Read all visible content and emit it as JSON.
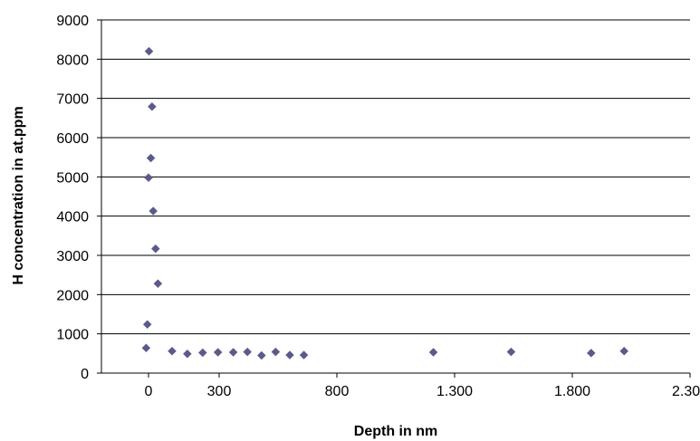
{
  "chart_data": {
    "type": "scatter",
    "title": "",
    "xlabel": "Depth in nm",
    "ylabel": "H concentration in at.ppm",
    "xlim": [
      -200,
      2300
    ],
    "ylim": [
      0,
      9000
    ],
    "x_ticks": [
      0,
      300,
      800,
      1300,
      1800,
      2300
    ],
    "x_tick_labels": [
      "0",
      "300",
      "800",
      "1.300",
      "1.800",
      "2.300"
    ],
    "y_ticks": [
      0,
      1000,
      2000,
      3000,
      4000,
      5000,
      6000,
      7000,
      8000,
      9000
    ],
    "y_tick_labels": [
      "0",
      "1000",
      "2000",
      "3000",
      "4000",
      "5000",
      "6000",
      "7000",
      "8000",
      "9000"
    ],
    "grid": "horizontal",
    "legend": "none",
    "marker": "diamond",
    "marker_color": "#5b5a8c",
    "series": [
      {
        "points": [
          {
            "x": 2,
            "y": 8200
          },
          {
            "x": 15,
            "y": 6790
          },
          {
            "x": 10,
            "y": 5480
          },
          {
            "x": 0,
            "y": 4980
          },
          {
            "x": 20,
            "y": 4130
          },
          {
            "x": 30,
            "y": 3170
          },
          {
            "x": 40,
            "y": 2280
          },
          {
            "x": -5,
            "y": 1240
          },
          {
            "x": -10,
            "y": 640
          },
          {
            "x": 100,
            "y": 560
          },
          {
            "x": 165,
            "y": 490
          },
          {
            "x": 230,
            "y": 520
          },
          {
            "x": 295,
            "y": 530
          },
          {
            "x": 360,
            "y": 530
          },
          {
            "x": 420,
            "y": 540
          },
          {
            "x": 480,
            "y": 450
          },
          {
            "x": 540,
            "y": 540
          },
          {
            "x": 600,
            "y": 460
          },
          {
            "x": 660,
            "y": 460
          },
          {
            "x": 1210,
            "y": 530
          },
          {
            "x": 1540,
            "y": 540
          },
          {
            "x": 1880,
            "y": 510
          },
          {
            "x": 2020,
            "y": 560
          }
        ]
      }
    ]
  }
}
